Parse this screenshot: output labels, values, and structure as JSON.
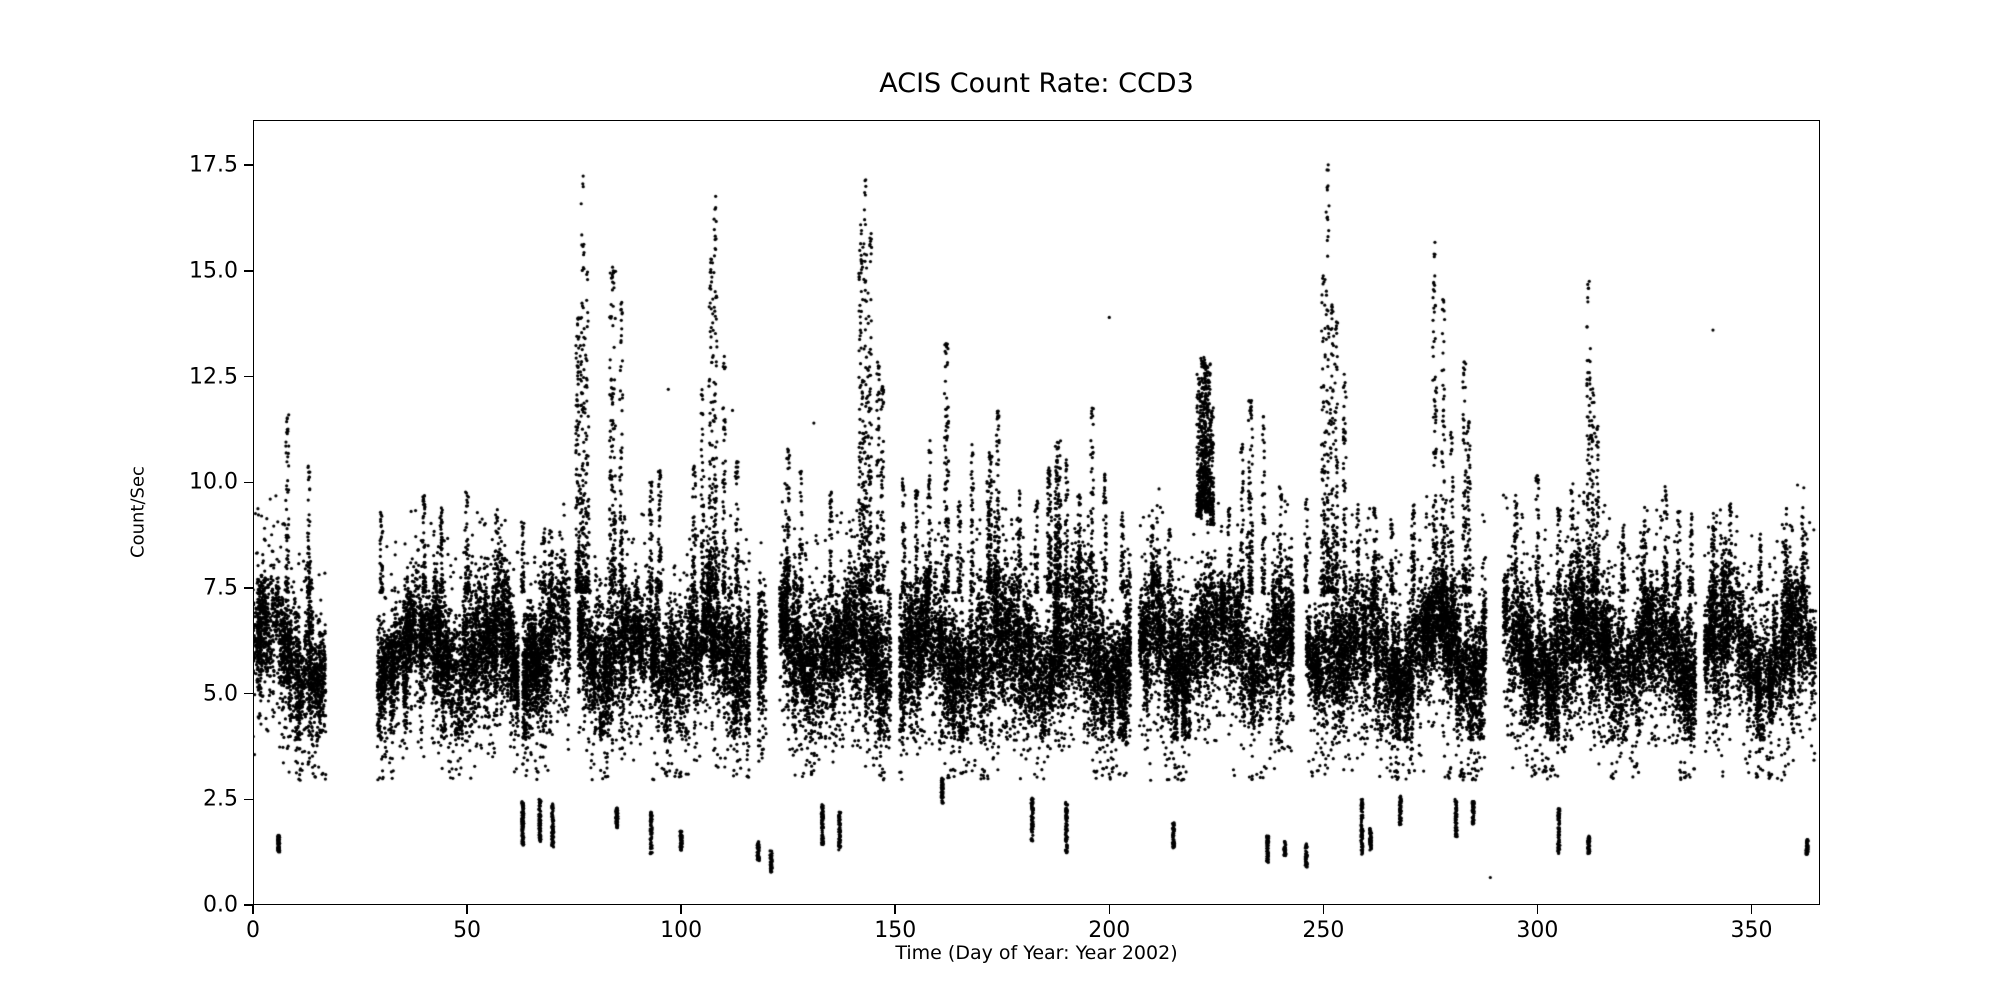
{
  "page": {
    "background": "#ffffff"
  },
  "chart_data": {
    "type": "scatter",
    "title": "ACIS Count Rate: CCD3",
    "xlabel": "Time (Day of Year: Year 2002)",
    "ylabel": "Count/Sec",
    "legend": "none",
    "grid": false,
    "marker": {
      "color": "#000000",
      "radius": 1.6
    },
    "series": [
      {
        "name": "CCD3 count rate",
        "color": "#000000"
      }
    ],
    "axes": {
      "xlim": [
        0,
        366
      ],
      "ylim": [
        0,
        18.57
      ],
      "xticks": [
        {
          "v": 0,
          "label": "0"
        },
        {
          "v": 50,
          "label": "50"
        },
        {
          "v": 100,
          "label": "100"
        },
        {
          "v": 150,
          "label": "150"
        },
        {
          "v": 200,
          "label": "200"
        },
        {
          "v": 250,
          "label": "250"
        },
        {
          "v": 300,
          "label": "300"
        },
        {
          "v": 350,
          "label": "350"
        }
      ],
      "yticks": [
        {
          "v": 0,
          "label": "0.0"
        },
        {
          "v": 2.5,
          "label": "2.5"
        },
        {
          "v": 5,
          "label": "5.0"
        },
        {
          "v": 7.5,
          "label": "7.5"
        },
        {
          "v": 10,
          "label": "10.0"
        },
        {
          "v": 12.5,
          "label": "12.5"
        },
        {
          "v": 15,
          "label": "15.0"
        },
        {
          "v": 17.5,
          "label": "17.5"
        }
      ]
    },
    "synthesis": {
      "seed": 20021,
      "day_range": [
        0,
        365
      ],
      "band": {
        "mean": 6.05,
        "wobble": 0.55,
        "day_mean_jitter": 1.0,
        "sd_min": 0.4,
        "sd_max": 0.95,
        "points_per_day": 130,
        "ymin": 3.9,
        "ymax": 9.4,
        "low_tail_prob": 0.05,
        "high_speckle_prob": 0.02,
        "deep_day_prob": 0.1
      },
      "gaps": [
        [
          16.5,
          28
        ],
        [
          61.3,
          62.6
        ],
        [
          74,
          75.3
        ],
        [
          115.5,
          117.3
        ],
        [
          119.8,
          122.8
        ],
        [
          148.6,
          150.4
        ],
        [
          204.6,
          206.4
        ],
        [
          243,
          245.6
        ],
        [
          287.5,
          291.5
        ],
        [
          337,
          338.3
        ]
      ],
      "spikes": [
        [
          8,
          11.6
        ],
        [
          13,
          10.4
        ],
        [
          30,
          9.3
        ],
        [
          40,
          9.7
        ],
        [
          44,
          9.4
        ],
        [
          50,
          9.8
        ],
        [
          57,
          9.3
        ],
        [
          63,
          9.1
        ],
        [
          68,
          8.9
        ],
        [
          76,
          14.0,
          1.2,
          140
        ],
        [
          77,
          17.3
        ],
        [
          78,
          15.0,
          1.0,
          90
        ],
        [
          84,
          15.1,
          1.4,
          150
        ],
        [
          86,
          14.4
        ],
        [
          93,
          10.1
        ],
        [
          95,
          10.3
        ],
        [
          103,
          10.4
        ],
        [
          105,
          12.2
        ],
        [
          107,
          15.3,
          1.0,
          110
        ],
        [
          108,
          16.8
        ],
        [
          110,
          13.0
        ],
        [
          113,
          10.5
        ],
        [
          125,
          10.9
        ],
        [
          128,
          10.3
        ],
        [
          135,
          9.9
        ],
        [
          142,
          16.2,
          1.0,
          120
        ],
        [
          143,
          17.2
        ],
        [
          144,
          15.9,
          1.0,
          110
        ],
        [
          146,
          12.9
        ],
        [
          147,
          12.4
        ],
        [
          152,
          10.1
        ],
        [
          155,
          9.9
        ],
        [
          158,
          11.0
        ],
        [
          162,
          13.3,
          1.0,
          110
        ],
        [
          165,
          9.6
        ],
        [
          168,
          10.9
        ],
        [
          172,
          10.7,
          1.2,
          130
        ],
        [
          174,
          11.7
        ],
        [
          179,
          9.8
        ],
        [
          183,
          9.6
        ],
        [
          186,
          10.4,
          1.0,
          100
        ],
        [
          188,
          11.0,
          1.4,
          160
        ],
        [
          190,
          10.6
        ],
        [
          193,
          9.7
        ],
        [
          196,
          11.9
        ],
        [
          199,
          10.2
        ],
        [
          203,
          9.3
        ],
        [
          210,
          9.0
        ],
        [
          214,
          8.9
        ],
        [
          221,
          12.6,
          1.1,
          150,
          9.2
        ],
        [
          222,
          13.0,
          1.3,
          260,
          9.4
        ],
        [
          223,
          12.8,
          1.2,
          220,
          9.3
        ],
        [
          224,
          11.8,
          0.8,
          90,
          9.0
        ],
        [
          228,
          9.4
        ],
        [
          231,
          11.0
        ],
        [
          233,
          12.0,
          1.0,
          100
        ],
        [
          236,
          11.6
        ],
        [
          240,
          10.0
        ],
        [
          246,
          9.6
        ],
        [
          250,
          15.0,
          0.9,
          90
        ],
        [
          251,
          17.6
        ],
        [
          252,
          14.3,
          0.9,
          80
        ],
        [
          253,
          13.8
        ],
        [
          255,
          12.6
        ],
        [
          258,
          9.5
        ],
        [
          262,
          9.4
        ],
        [
          266,
          9.2
        ],
        [
          271,
          9.5
        ],
        [
          276,
          15.7,
          0.9,
          90
        ],
        [
          278,
          14.4
        ],
        [
          280,
          11.2
        ],
        [
          283,
          12.9,
          0.9,
          90
        ],
        [
          284,
          11.5
        ],
        [
          295,
          9.7
        ],
        [
          300,
          10.2
        ],
        [
          305,
          9.4
        ],
        [
          308,
          10.0
        ],
        [
          312,
          14.8,
          0.9,
          90
        ],
        [
          313,
          12.3
        ],
        [
          314,
          11.4
        ],
        [
          320,
          9.0
        ],
        [
          325,
          9.1
        ],
        [
          330,
          9.9
        ],
        [
          333,
          9.4
        ],
        [
          336,
          9.3
        ],
        [
          341,
          9.2
        ],
        [
          345,
          9.5
        ],
        [
          352,
          8.8
        ],
        [
          358,
          8.6
        ],
        [
          362,
          9.2
        ]
      ],
      "low_clusters": [
        [
          6,
          1.25,
          1.65,
          70
        ],
        [
          63,
          1.4,
          2.45,
          90
        ],
        [
          67,
          1.5,
          2.5,
          80
        ],
        [
          70,
          1.35,
          2.4,
          80
        ],
        [
          85,
          1.8,
          2.3,
          60
        ],
        [
          93,
          1.2,
          2.2,
          70
        ],
        [
          100,
          1.3,
          1.75,
          60
        ],
        [
          118,
          1.05,
          1.5,
          50
        ],
        [
          121,
          0.75,
          1.3,
          50
        ],
        [
          133,
          1.4,
          2.4,
          70
        ],
        [
          137,
          1.3,
          2.2,
          60
        ],
        [
          161,
          2.4,
          3.0,
          50
        ],
        [
          182,
          1.5,
          2.55,
          70
        ],
        [
          190,
          1.2,
          2.45,
          70
        ],
        [
          215,
          1.35,
          1.95,
          60
        ],
        [
          237,
          1.0,
          1.65,
          60
        ],
        [
          241,
          1.15,
          1.5,
          40
        ],
        [
          246,
          0.9,
          1.45,
          50
        ],
        [
          259,
          1.2,
          2.5,
          80
        ],
        [
          261,
          1.3,
          1.85,
          50
        ],
        [
          268,
          1.9,
          2.6,
          60
        ],
        [
          281,
          1.6,
          2.5,
          60
        ],
        [
          285,
          1.9,
          2.45,
          50
        ],
        [
          305,
          1.2,
          2.3,
          70
        ],
        [
          312,
          1.2,
          1.65,
          50
        ],
        [
          363,
          1.2,
          1.55,
          50
        ]
      ],
      "isolated_dots": [
        [
          97,
          12.2
        ],
        [
          112,
          11.7
        ],
        [
          131,
          11.4
        ],
        [
          200,
          13.9
        ],
        [
          289,
          0.65
        ],
        [
          341,
          13.6
        ]
      ]
    }
  }
}
